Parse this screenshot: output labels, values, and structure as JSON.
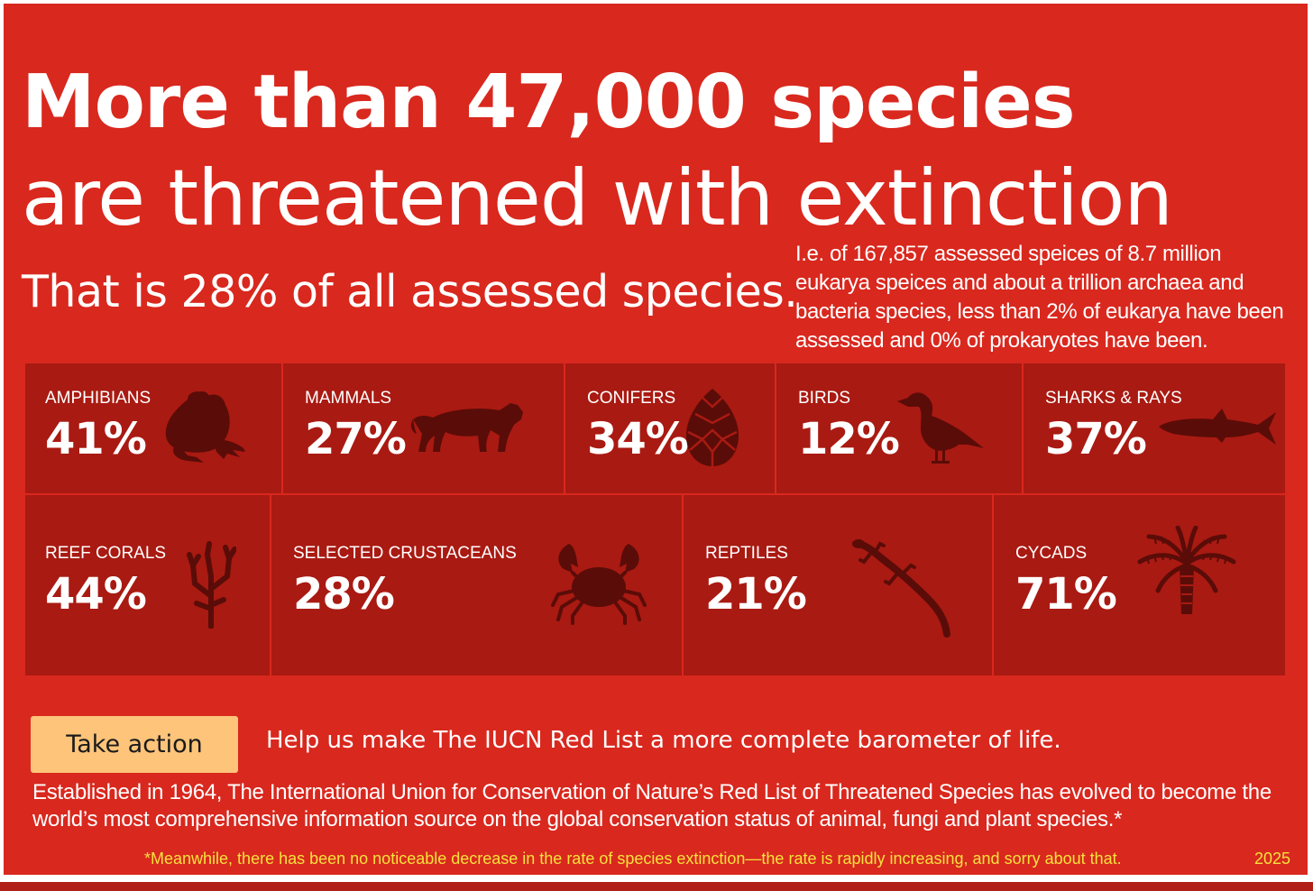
{
  "headline": {
    "line1": "More than 47,000 species",
    "line2": "are threatened with extinction",
    "line3": "That is 28% of all assessed species."
  },
  "side_note": "I.e. of 167,857 assessed speices of 8.7 million eukarya speices and about a trillion archaea and bacteria species, less than 2% of eukarya have been assessed and 0% of prokaryotes have been.",
  "groups": [
    {
      "label": "AMPHIBIANS",
      "percent": "41%",
      "icon": "frog-icon"
    },
    {
      "label": "MAMMALS",
      "percent": "27%",
      "icon": "tiger-icon"
    },
    {
      "label": "CONIFERS",
      "percent": "34%",
      "icon": "pine-cone-icon"
    },
    {
      "label": "BIRDS",
      "percent": "12%",
      "icon": "bird-icon"
    },
    {
      "label": "SHARKS & RAYS",
      "percent": "37%",
      "icon": "shark-icon"
    },
    {
      "label": "REEF CORALS",
      "percent": "44%",
      "icon": "coral-icon"
    },
    {
      "label": "SELECTED CRUSTACEANS",
      "percent": "28%",
      "icon": "crab-icon"
    },
    {
      "label": "REPTILES",
      "percent": "21%",
      "icon": "lizard-icon"
    },
    {
      "label": "CYCADS",
      "percent": "71%",
      "icon": "palm-icon"
    }
  ],
  "action": {
    "button_label": "Take action",
    "cta_text": "Help us make The IUCN Red List a more complete barometer of life."
  },
  "body_text": "Established in 1964, The International Union for Conservation of Nature’s Red List of Threatened Species has evolved to become the world’s most comprehensive information source on the global conservation status of animal, fungi and plant species.*",
  "footnote": "*Meanwhile, there has been no noticeable decrease in the rate of species extinction—the rate is rapidly increasing, and sorry about that.",
  "year": "2025",
  "colors": {
    "background": "#d9281e",
    "tile": "#a91a12",
    "icon": "#5a0c08",
    "button": "#fdc47a",
    "footnote": "#f6e23c"
  }
}
